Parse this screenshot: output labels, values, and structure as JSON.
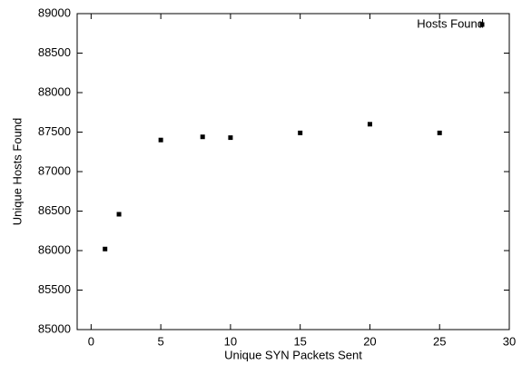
{
  "chart_data": {
    "type": "scatter",
    "x_label": "Unique SYN Packets Sent",
    "y_label": "Unique Hosts Found",
    "series": [
      {
        "name": "Hosts Found",
        "color": "#000000",
        "x": [
          1,
          2,
          5,
          8,
          10,
          15,
          20,
          25
        ],
        "values": [
          86020,
          86460,
          87400,
          87440,
          87430,
          87490,
          87600,
          87490
        ]
      }
    ],
    "xlim": [
      -1,
      30
    ],
    "xticks": [
      0,
      5,
      10,
      15,
      20,
      25,
      30
    ],
    "ylim": [
      85000,
      89000
    ],
    "yticks": [
      85000,
      85500,
      86000,
      86500,
      87000,
      87500,
      88000,
      88500,
      89000
    ],
    "grid": false,
    "legend": "top-right"
  }
}
